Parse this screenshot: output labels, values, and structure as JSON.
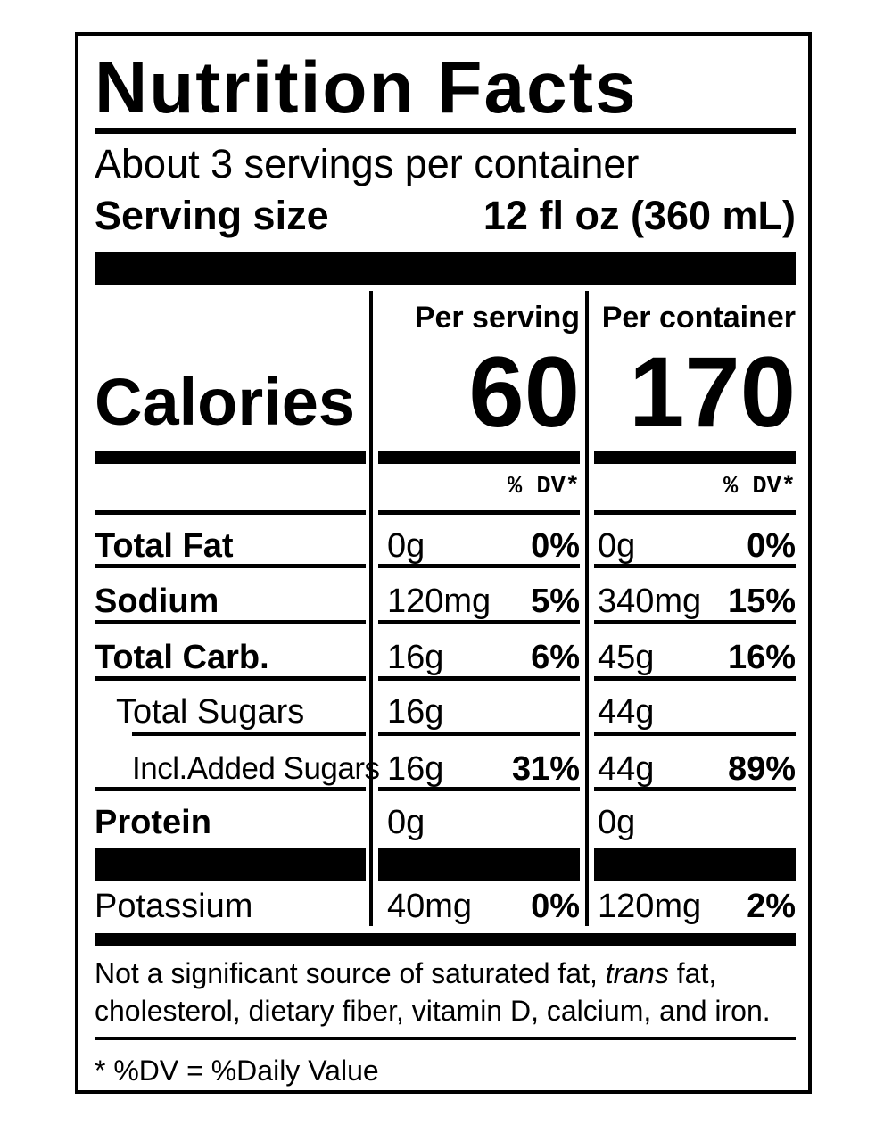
{
  "header": {
    "title": "Nutrition Facts",
    "servings_per_container": "About 3 servings per container",
    "serving_size_label": "Serving size",
    "serving_size_value": "12 fl oz (360 mL)"
  },
  "columns": {
    "per_serving": "Per serving",
    "per_container": "Per container"
  },
  "calories": {
    "label": "Calories",
    "per_serving": "60",
    "per_container": "170"
  },
  "dv_header": "% DV*",
  "nutrients": [
    {
      "name": "Total Fat",
      "bold": true,
      "serving_amount": "0g",
      "serving_dv": "0%",
      "container_amount": "0g",
      "container_dv": "0%"
    },
    {
      "name": "Sodium",
      "bold": true,
      "serving_amount": "120mg",
      "serving_dv": "5%",
      "container_amount": "340mg",
      "container_dv": "15%"
    },
    {
      "name": "Total Carb.",
      "bold": true,
      "serving_amount": "16g",
      "serving_dv": "6%",
      "container_amount": "45g",
      "container_dv": "16%"
    },
    {
      "name": "Total Sugars",
      "bold": false,
      "serving_amount": "16g",
      "serving_dv": "",
      "container_amount": "44g",
      "container_dv": ""
    },
    {
      "name": "Incl.Added Sugars",
      "bold": false,
      "serving_amount": "16g",
      "serving_dv": "31%",
      "container_amount": "44g",
      "container_dv": "89%"
    },
    {
      "name": "Protein",
      "bold": true,
      "serving_amount": "0g",
      "serving_dv": "",
      "container_amount": "0g",
      "container_dv": ""
    },
    {
      "name": "Potassium",
      "bold": false,
      "serving_amount": "40mg",
      "serving_dv": "0%",
      "container_amount": "120mg",
      "container_dv": "2%"
    }
  ],
  "footnote": {
    "part1": "Not a significant source of saturated fat, ",
    "italic": "trans",
    "part2": " fat, cholesterol, dietary fiber, vitamin D, calcium, and iron.",
    "dv_note": "* %DV = %Daily Value"
  }
}
